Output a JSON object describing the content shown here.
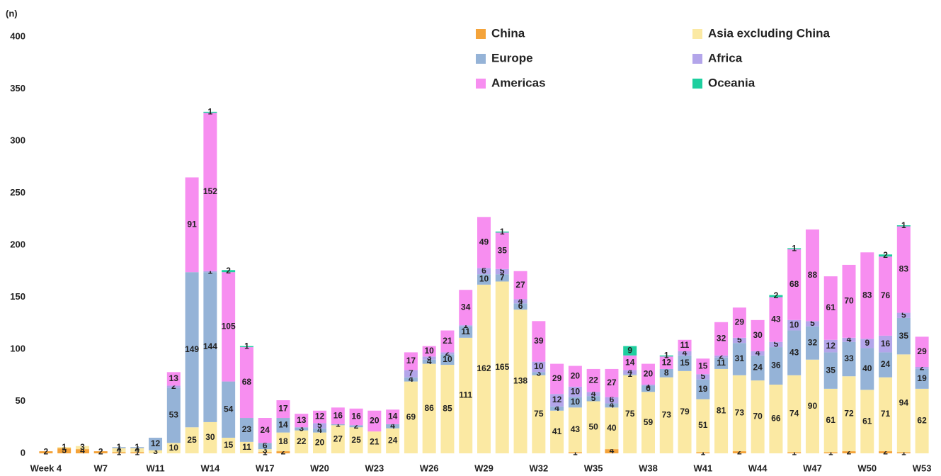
{
  "chart_data": {
    "type": "stacked-bar",
    "y_label": "(n)",
    "categories": [
      "Week 4",
      null,
      null,
      "W7",
      null,
      null,
      "W11",
      null,
      null,
      "W14",
      null,
      null,
      "W17",
      null,
      null,
      "W20",
      null,
      null,
      "W23",
      null,
      null,
      "W26",
      null,
      null,
      "W29",
      null,
      null,
      "W32",
      null,
      null,
      "W35",
      null,
      null,
      "W38",
      null,
      null,
      "W41",
      null,
      null,
      "W44",
      null,
      null,
      "W47",
      null,
      null,
      "W50",
      null,
      null,
      "W53"
    ],
    "series": [
      {
        "name": "China",
        "color": "#f4a33a",
        "values": [
          2,
          5,
          4,
          2,
          1,
          1,
          0,
          0,
          0,
          0,
          0,
          0,
          1,
          2,
          0,
          0,
          0,
          0,
          0,
          0,
          0,
          0,
          0,
          0,
          0,
          0,
          0,
          0,
          0,
          1,
          0,
          4,
          0,
          0,
          0,
          0,
          1,
          0,
          2,
          0,
          0,
          1,
          0,
          1,
          2,
          0,
          2,
          1,
          0
        ]
      },
      {
        "name": "Asia excluding China",
        "color": "#fbe9a3",
        "values": [
          0,
          1,
          3,
          0,
          4,
          4,
          3,
          10,
          25,
          30,
          15,
          11,
          3,
          18,
          22,
          20,
          27,
          25,
          21,
          24,
          69,
          86,
          85,
          111,
          162,
          165,
          138,
          75,
          41,
          43,
          50,
          40,
          75,
          59,
          73,
          79,
          51,
          81,
          73,
          70,
          66,
          74,
          90,
          61,
          72,
          61,
          71,
          94,
          62
        ]
      },
      {
        "name": "Europe",
        "color": "#95b3d7",
        "values": [
          0,
          0,
          0,
          0,
          1,
          1,
          12,
          53,
          149,
          144,
          54,
          23,
          6,
          14,
          3,
          4,
          1,
          2,
          0,
          4,
          4,
          4,
          10,
          11,
          10,
          7,
          6,
          3,
          4,
          10,
          5,
          4,
          1,
          6,
          8,
          15,
          19,
          11,
          31,
          24,
          36,
          43,
          32,
          35,
          33,
          40,
          24,
          35,
          19
        ]
      },
      {
        "name": "Africa",
        "color": "#b3a5ea",
        "values": [
          0,
          0,
          0,
          0,
          0,
          0,
          0,
          2,
          0,
          1,
          0,
          0,
          0,
          0,
          0,
          5,
          0,
          0,
          0,
          0,
          7,
          3,
          2,
          1,
          6,
          5,
          4,
          10,
          12,
          10,
          4,
          6,
          4,
          1,
          0,
          4,
          5,
          2,
          5,
          4,
          5,
          10,
          5,
          12,
          4,
          9,
          16,
          5,
          2
        ]
      },
      {
        "name": "Americas",
        "color": "#f78ef0",
        "values": [
          0,
          0,
          0,
          0,
          0,
          0,
          0,
          13,
          91,
          152,
          105,
          68,
          24,
          17,
          13,
          12,
          16,
          16,
          20,
          14,
          17,
          10,
          21,
          34,
          49,
          35,
          27,
          39,
          29,
          20,
          22,
          27,
          14,
          20,
          12,
          11,
          15,
          32,
          29,
          30,
          43,
          68,
          88,
          61,
          70,
          83,
          76,
          83,
          29
        ]
      },
      {
        "name": "Oceania",
        "color": "#1ecf9f",
        "values": [
          0,
          0,
          0,
          0,
          0,
          0,
          0,
          0,
          0,
          1,
          2,
          1,
          0,
          0,
          0,
          0,
          0,
          0,
          0,
          0,
          0,
          0,
          0,
          0,
          0,
          1,
          0,
          0,
          0,
          0,
          0,
          0,
          9,
          0,
          1,
          0,
          0,
          0,
          0,
          0,
          2,
          1,
          0,
          0,
          0,
          0,
          2,
          1,
          0
        ]
      }
    ],
    "ylim": [
      0,
      400
    ],
    "yticks": [
      0,
      50,
      100,
      150,
      200,
      250,
      300,
      350,
      400
    ],
    "grid": false,
    "legend": "top-right"
  }
}
